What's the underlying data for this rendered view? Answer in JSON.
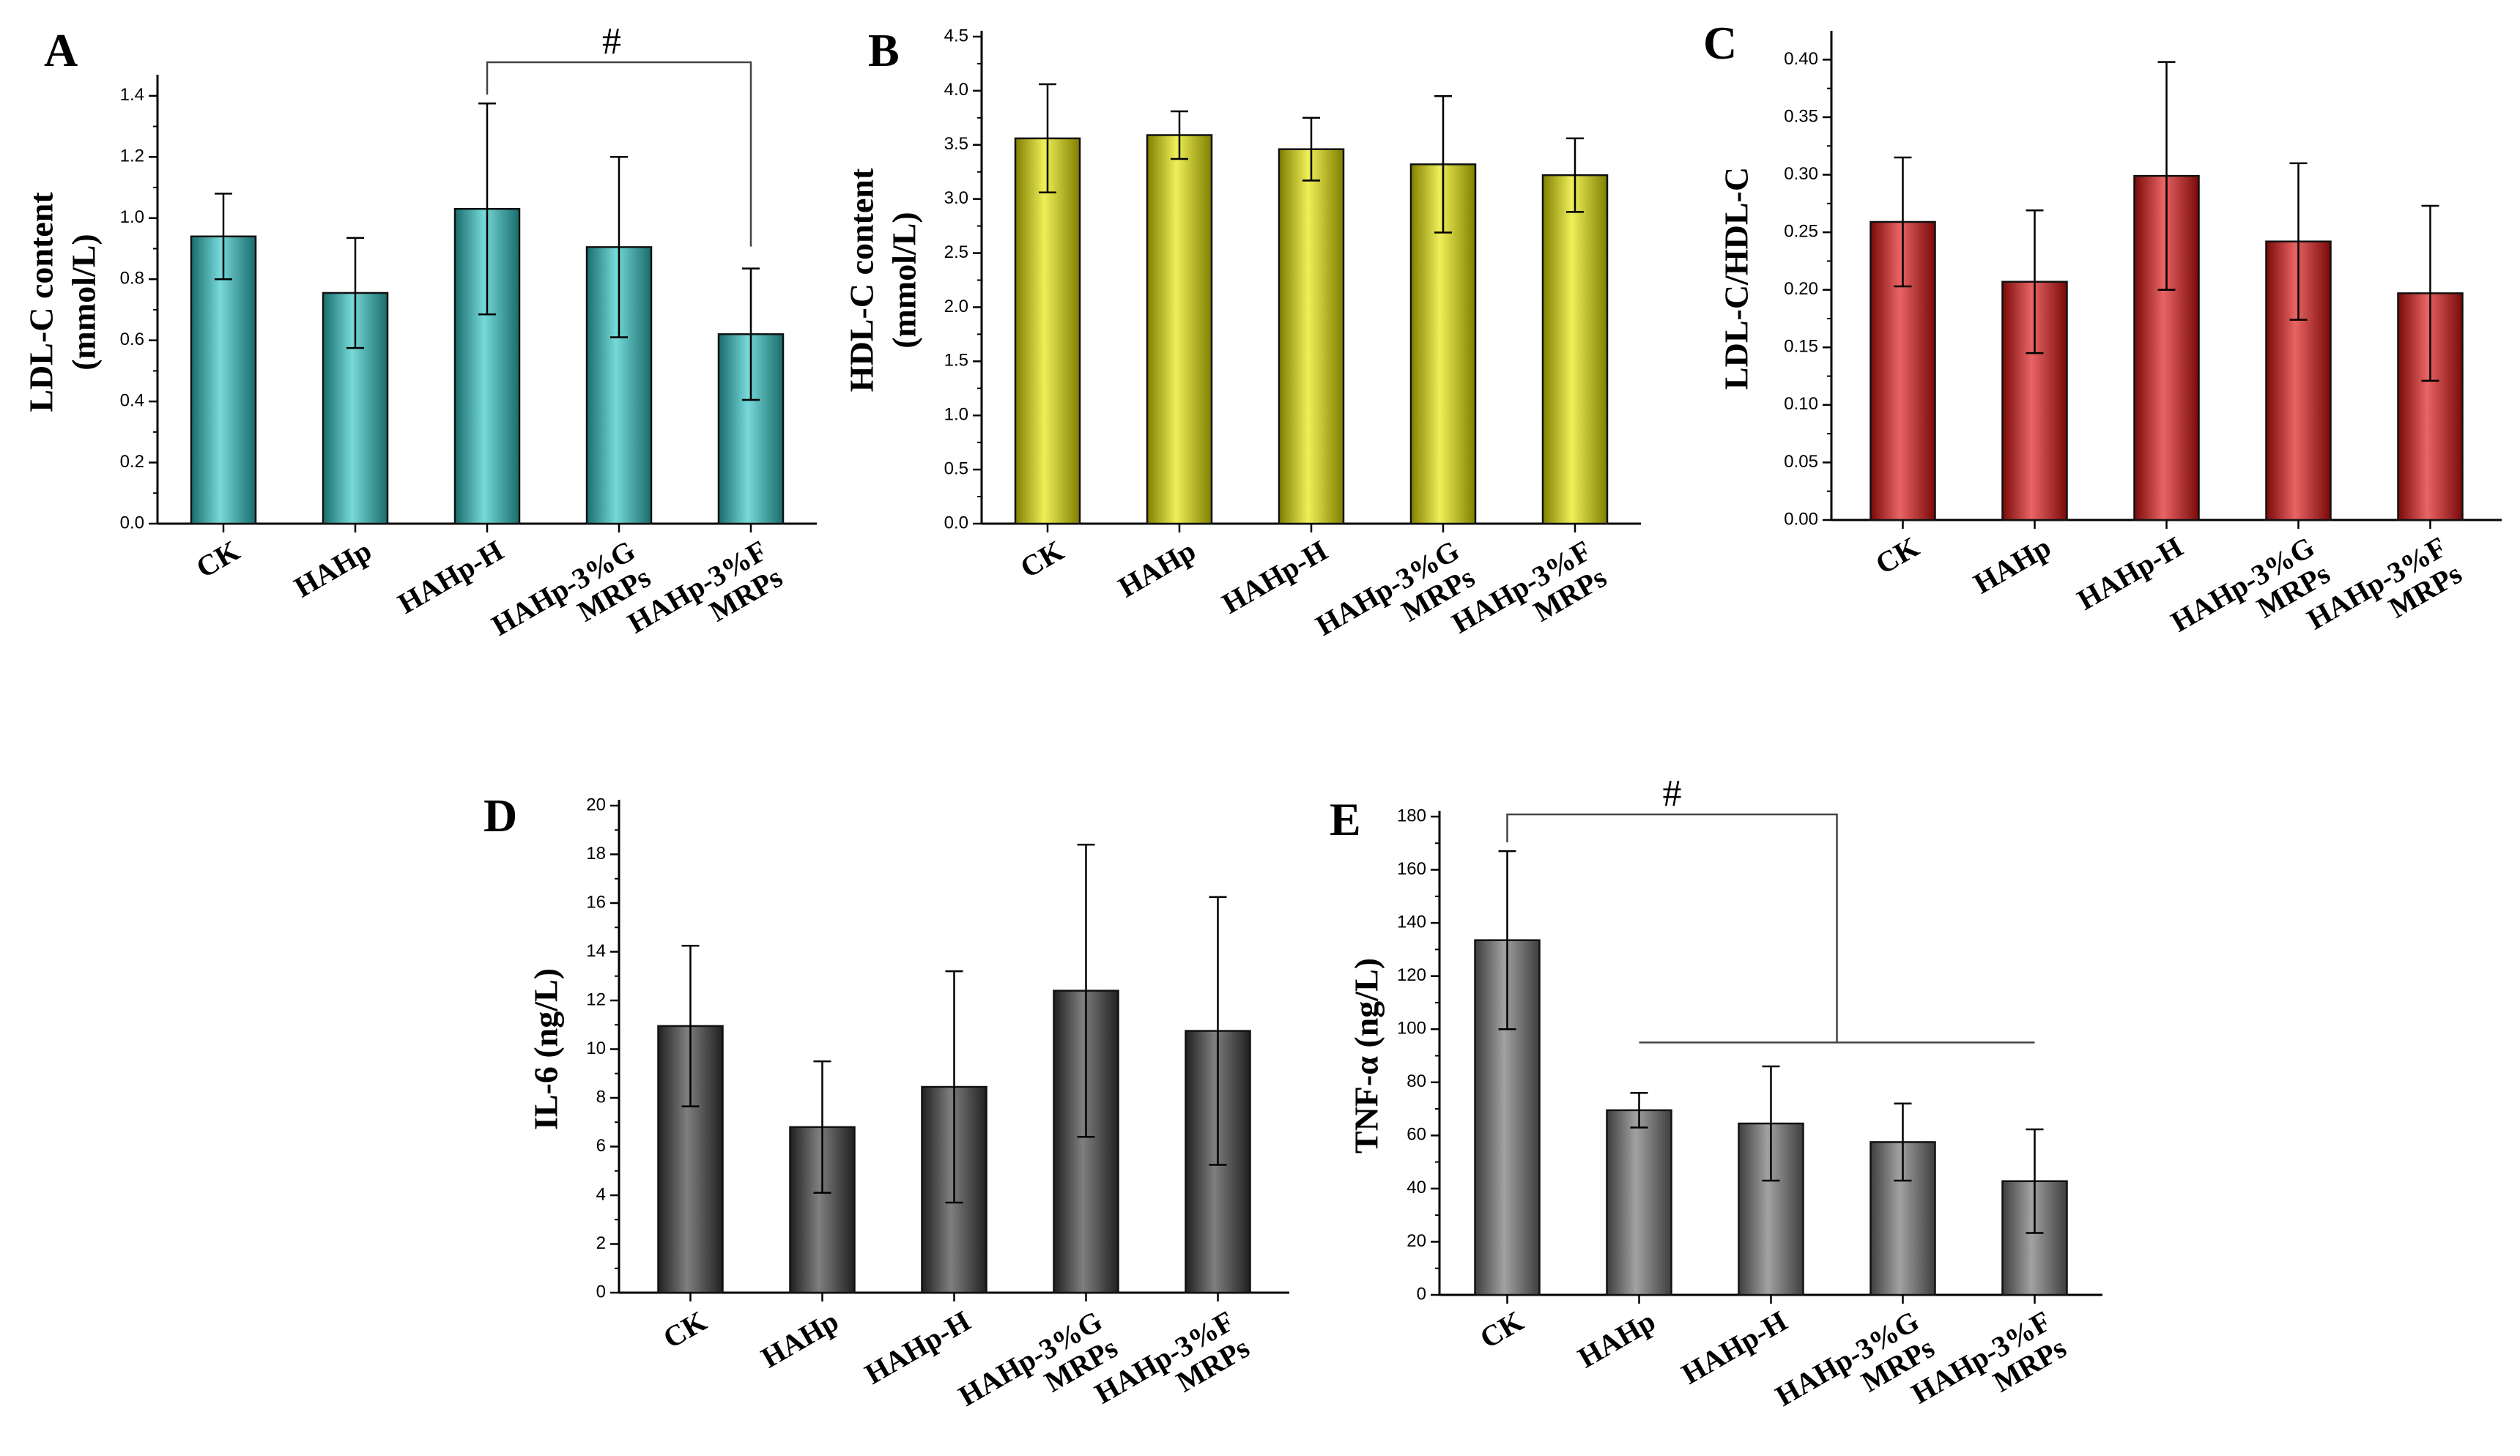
{
  "chart_data": [
    {
      "type": "bar",
      "panel": "A",
      "categories": [
        [
          "CK"
        ],
        [
          "HAHp"
        ],
        [
          "HAHp-H"
        ],
        [
          "HAHp-3%G",
          "MRPs"
        ],
        [
          "HAHp-3%F",
          "MRPs"
        ]
      ],
      "values": [
        0.94,
        0.755,
        1.03,
        0.905,
        0.62
      ],
      "errors": [
        0.14,
        0.18,
        0.345,
        0.295,
        0.215
      ],
      "ylabel": [
        "LDL-C content",
        "(mmol/L)"
      ],
      "ylim": [
        0,
        1.45
      ],
      "yticks": [
        "0.0",
        "0.2",
        "0.4",
        "0.6",
        "0.8",
        "1.0",
        "1.2",
        "1.4"
      ],
      "ytick_values": [
        0,
        0.2,
        0.4,
        0.6,
        0.8,
        1.0,
        1.2,
        1.4
      ],
      "color": "#2ec4c4",
      "annotations": [
        {
          "text": "#",
          "from": 2,
          "to": 4
        }
      ]
    },
    {
      "type": "bar",
      "panel": "B",
      "categories": [
        [
          "CK"
        ],
        [
          "HAHp"
        ],
        [
          "HAHp-H"
        ],
        [
          "HAHp-3%G",
          "MRPs"
        ],
        [
          "HAHp-3%F",
          "MRPs"
        ]
      ],
      "values": [
        3.56,
        3.59,
        3.46,
        3.32,
        3.22
      ],
      "errors": [
        0.5,
        0.22,
        0.29,
        0.63,
        0.34
      ],
      "ylabel": [
        "HDL-C content",
        "(mmol/L)"
      ],
      "ylim": [
        0,
        4.5
      ],
      "yticks": [
        "0.0",
        "0.5",
        "1.0",
        "1.5",
        "2.0",
        "2.5",
        "3.0",
        "3.5",
        "4.0",
        "4.5"
      ],
      "ytick_values": [
        0,
        0.5,
        1.0,
        1.5,
        2.0,
        2.5,
        3.0,
        3.5,
        4.0,
        4.5
      ],
      "color": "#e6e600"
    },
    {
      "type": "bar",
      "panel": "C",
      "categories": [
        [
          "CK"
        ],
        [
          "HAHp"
        ],
        [
          "HAHp-H"
        ],
        [
          "HAHp-3%G",
          "MRPs"
        ],
        [
          "HAHp-3%F",
          "MRPs"
        ]
      ],
      "values": [
        0.259,
        0.207,
        0.299,
        0.242,
        0.197
      ],
      "errors": [
        0.056,
        0.062,
        0.099,
        0.068,
        0.076
      ],
      "ylabel": [
        "LDL-C/HDL-C"
      ],
      "ylim": [
        0,
        0.42
      ],
      "yticks": [
        "0.00",
        "0.05",
        "0.10",
        "0.15",
        "0.20",
        "0.25",
        "0.30",
        "0.35",
        "0.40"
      ],
      "ytick_values": [
        0,
        0.05,
        0.1,
        0.15,
        0.2,
        0.25,
        0.3,
        0.35,
        0.4
      ],
      "color": "#dd1111"
    },
    {
      "type": "bar",
      "panel": "D",
      "categories": [
        [
          "CK"
        ],
        [
          "HAHp"
        ],
        [
          "HAHp-H"
        ],
        [
          "HAHp-3%G",
          "MRPs"
        ],
        [
          "HAHp-3%F",
          "MRPs"
        ]
      ],
      "values": [
        10.95,
        6.8,
        8.45,
        12.4,
        10.75
      ],
      "errors": [
        3.3,
        2.7,
        4.75,
        6.0,
        5.5
      ],
      "ylabel": [
        "IL-6 (ng/L)"
      ],
      "ylim": [
        0,
        20
      ],
      "yticks": [
        "0",
        "2",
        "4",
        "6",
        "8",
        "10",
        "12",
        "14",
        "16",
        "18",
        "20"
      ],
      "ytick_values": [
        0,
        2,
        4,
        6,
        8,
        10,
        12,
        14,
        16,
        18,
        20
      ],
      "color": "#3a3a3a"
    },
    {
      "type": "bar",
      "panel": "E",
      "categories": [
        [
          "CK"
        ],
        [
          "HAHp"
        ],
        [
          "HAHp-H"
        ],
        [
          "HAHp-3%G",
          "MRPs"
        ],
        [
          "HAHp-3%F",
          "MRPs"
        ]
      ],
      "values": [
        133.5,
        69.5,
        64.5,
        57.5,
        42.8
      ],
      "errors": [
        33.5,
        6.5,
        21.5,
        14.5,
        19.5
      ],
      "ylabel": [
        "TNF-α (ng/L)"
      ],
      "ylim": [
        0,
        180
      ],
      "yticks": [
        "0",
        "20",
        "40",
        "60",
        "80",
        "100",
        "120",
        "140",
        "160",
        "180"
      ],
      "ytick_values": [
        0,
        20,
        40,
        60,
        80,
        100,
        120,
        140,
        160,
        180
      ],
      "color": "#707070",
      "annotations": [
        {
          "text": "#",
          "from": 0,
          "to_group": [
            1,
            4
          ]
        }
      ]
    }
  ]
}
